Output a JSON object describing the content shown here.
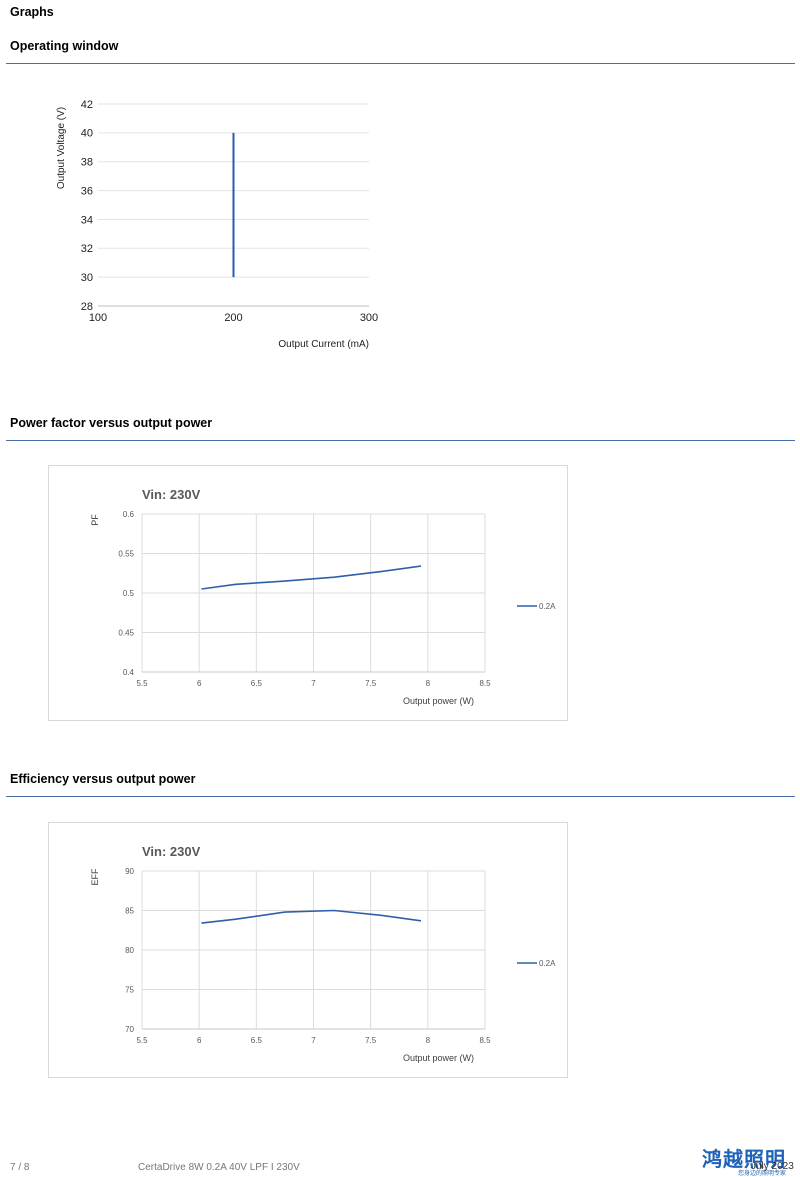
{
  "page": {
    "heading": "Graphs",
    "footer": {
      "page_number": "7 / 8",
      "product": "CertaDrive 8W 0.2A 40V LPF I 230V",
      "date": "July 2023",
      "logo_text": "鸿越照明",
      "logo_subtext": "您身边的照明专家"
    }
  },
  "sections": [
    {
      "title": "Operating window"
    },
    {
      "title": "Power factor versus output power"
    },
    {
      "title": "Efficiency versus output power"
    }
  ],
  "chart_data": [
    {
      "type": "line",
      "title": "",
      "xlabel": "Output Current (mA)",
      "ylabel": "Output Voltage (V)",
      "xlim": [
        100,
        300
      ],
      "ylim": [
        28,
        42
      ],
      "xticks": [
        "100",
        "200",
        "300"
      ],
      "yticks": [
        "28",
        "30",
        "32",
        "34",
        "36",
        "38",
        "40",
        "42"
      ],
      "grid": true,
      "series": [
        {
          "color": "#1f5fb4",
          "x": [
            200,
            200
          ],
          "y": [
            30,
            40
          ]
        }
      ]
    },
    {
      "type": "line",
      "title": "Vin: 230V",
      "xlabel": "Output power (W)",
      "ylabel": "PF",
      "xlim": [
        5.5,
        8.5
      ],
      "ylim": [
        0.4,
        0.6
      ],
      "xticks": [
        "5.5",
        "6",
        "6.5",
        "7",
        "7.5",
        "8",
        "8.5"
      ],
      "yticks": [
        "0.4",
        "0.45",
        "0.5",
        "0.55",
        "0.6"
      ],
      "grid": true,
      "legend": "right",
      "series": [
        {
          "name": "0.2A",
          "color": "#2e5faa",
          "x": [
            6.02,
            6.32,
            6.75,
            7.18,
            7.58,
            7.94
          ],
          "y": [
            0.505,
            0.511,
            0.515,
            0.52,
            0.527,
            0.534
          ]
        }
      ]
    },
    {
      "type": "line",
      "title": "Vin: 230V",
      "xlabel": "Output power (W)",
      "ylabel": "EFF",
      "xlim": [
        5.5,
        8.5
      ],
      "ylim": [
        70,
        90
      ],
      "xticks": [
        "5.5",
        "6",
        "6.5",
        "7",
        "7.5",
        "8",
        "8.5"
      ],
      "yticks": [
        "70",
        "75",
        "80",
        "85",
        "90"
      ],
      "grid": true,
      "legend": "right",
      "series": [
        {
          "name": "0.2A",
          "color": "#2e5faa",
          "x": [
            6.02,
            6.32,
            6.75,
            7.18,
            7.58,
            7.94
          ],
          "y": [
            83.4,
            83.9,
            84.8,
            85.0,
            84.4,
            83.7
          ]
        }
      ]
    }
  ]
}
